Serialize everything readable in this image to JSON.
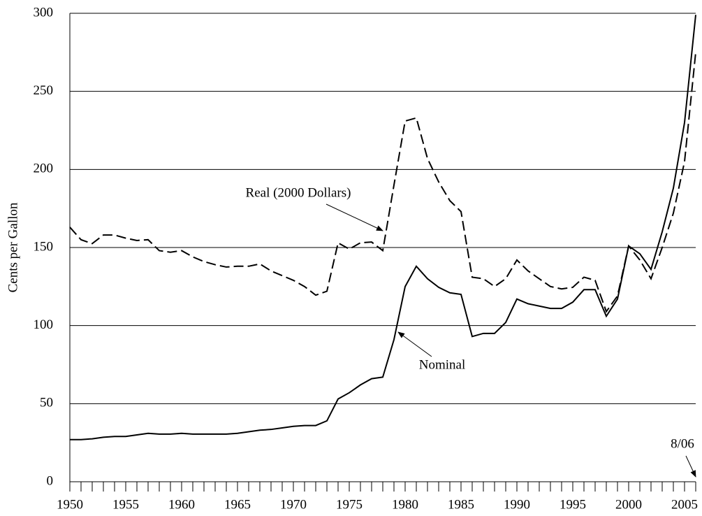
{
  "chart_data": {
    "type": "line",
    "y_label": "Cents per Gallon",
    "x": [
      1950,
      1951,
      1952,
      1953,
      1954,
      1955,
      1956,
      1957,
      1958,
      1959,
      1960,
      1961,
      1962,
      1963,
      1964,
      1965,
      1966,
      1967,
      1968,
      1969,
      1970,
      1971,
      1972,
      1973,
      1974,
      1975,
      1976,
      1977,
      1978,
      1979,
      1980,
      1981,
      1982,
      1983,
      1984,
      1985,
      1986,
      1987,
      1988,
      1989,
      1990,
      1991,
      1992,
      1993,
      1994,
      1995,
      1996,
      1997,
      1998,
      1999,
      2000,
      2001,
      2002,
      2003,
      2004,
      2005,
      2006
    ],
    "series": [
      {
        "name": "Nominal",
        "color": "#000000",
        "dash": false,
        "values": [
          27,
          27,
          27.5,
          28.5,
          29,
          29,
          30,
          31,
          30.5,
          30.5,
          31,
          30.5,
          30.5,
          30.5,
          30.5,
          31,
          32,
          33,
          33.5,
          34.5,
          35.5,
          36,
          36,
          39,
          53,
          57,
          62,
          66,
          67,
          91,
          125,
          138,
          130,
          124.5,
          121,
          120,
          93,
          95,
          95,
          102,
          117,
          114,
          112.5,
          111,
          111,
          115,
          123,
          123,
          106,
          117,
          151,
          146,
          136,
          160,
          188,
          230,
          299
        ]
      },
      {
        "name": "Real (2000 Dollars)",
        "color": "#000000",
        "dash": true,
        "values": [
          163,
          155,
          152.5,
          158,
          158,
          156,
          154.5,
          155,
          148,
          147,
          148,
          144,
          141,
          139,
          137.5,
          138,
          138,
          139.5,
          135,
          132,
          129,
          125,
          119.5,
          122,
          153,
          149,
          153,
          153.5,
          148,
          190,
          231,
          233,
          207,
          192,
          180,
          173,
          131,
          130,
          125,
          130,
          142,
          135,
          130,
          125,
          123.5,
          124.5,
          131,
          129,
          109,
          119,
          151,
          142,
          130,
          150,
          172,
          205,
          275
        ]
      }
    ],
    "annotations": [
      "8/06"
    ],
    "xlim": [
      1950,
      2006
    ],
    "xticks": [
      1950,
      1955,
      1960,
      1965,
      1970,
      1975,
      1980,
      1985,
      1990,
      1995,
      2000,
      2005
    ],
    "ylim": [
      0,
      300
    ],
    "yticks": [
      0,
      50,
      100,
      150,
      200,
      250,
      300
    ],
    "grid": true
  }
}
